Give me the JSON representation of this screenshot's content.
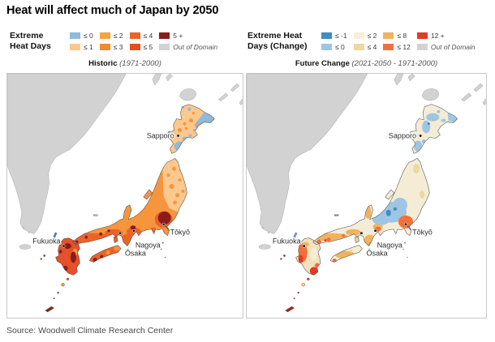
{
  "header": {
    "title": "Heat will affect much of Japan by 2050"
  },
  "source": "Source: Woodwell Climate Research Center",
  "legends": [
    {
      "name1": "Extreme",
      "name2": "Heat Days",
      "items": [
        {
          "label": "≤ 0",
          "color": "#8fb9dd"
        },
        {
          "label": "≤ 1",
          "color": "#fcc88d"
        },
        {
          "label": "≤ 2",
          "color": "#f9a13e"
        },
        {
          "label": "≤ 3",
          "color": "#f18a2e"
        },
        {
          "label": "≤ 4",
          "color": "#ee6325"
        },
        {
          "label": "≤ 5",
          "color": "#e64d22"
        },
        {
          "label": "5 +",
          "color": "#8c1c1c"
        },
        {
          "label": "Out of Domain",
          "color": "#d2d2d2",
          "italic": true
        }
      ]
    },
    {
      "name1": "Extreme Heat",
      "name2": "Days (Change)",
      "items": [
        {
          "label": "≤ -1",
          "color": "#3d8ec6"
        },
        {
          "label": "≤ 0",
          "color": "#9ec5e2"
        },
        {
          "label": "≤ 2",
          "color": "#f6eed6"
        },
        {
          "label": "≤ 4",
          "color": "#ead9a0"
        },
        {
          "label": "≤ 8",
          "color": "#f0b35e"
        },
        {
          "label": "≤ 12",
          "color": "#f3703a"
        },
        {
          "label": "12 +",
          "color": "#e03c25"
        },
        {
          "label": "Out of Domain",
          "color": "#d2d2d2",
          "italic": true
        }
      ]
    }
  ],
  "panels": [
    {
      "title": "Historic",
      "period": "(1971-2000)"
    },
    {
      "title": "Future Change",
      "period": "(2021-2050 - 1971-2000)"
    }
  ],
  "cities": {
    "sapporo": "Sapporo",
    "fukuoka": "Fukuoka",
    "nagoya": "Nagoya",
    "osaka": "Ōsaka",
    "tokyo": "Tōkyō"
  },
  "map_palette": {
    "ood": "#d2d2d2",
    "h-blue": "#8fb9dd",
    "h-peach": "#fcc88d",
    "h-or": "#f6953b",
    "h-or2": "#ed6227",
    "h-red": "#e4512a",
    "h-dark": "#8c1c1c",
    "f-blue1": "#3d8ec6",
    "f-blue0": "#9ec5e2",
    "f-cream": "#f5ecd6",
    "f-tan": "#ead9a0",
    "f-tanor": "#f0b35e",
    "f-or": "#f3703a",
    "f-red": "#e03c25",
    "f-kyu": "#f2e2bd"
  }
}
